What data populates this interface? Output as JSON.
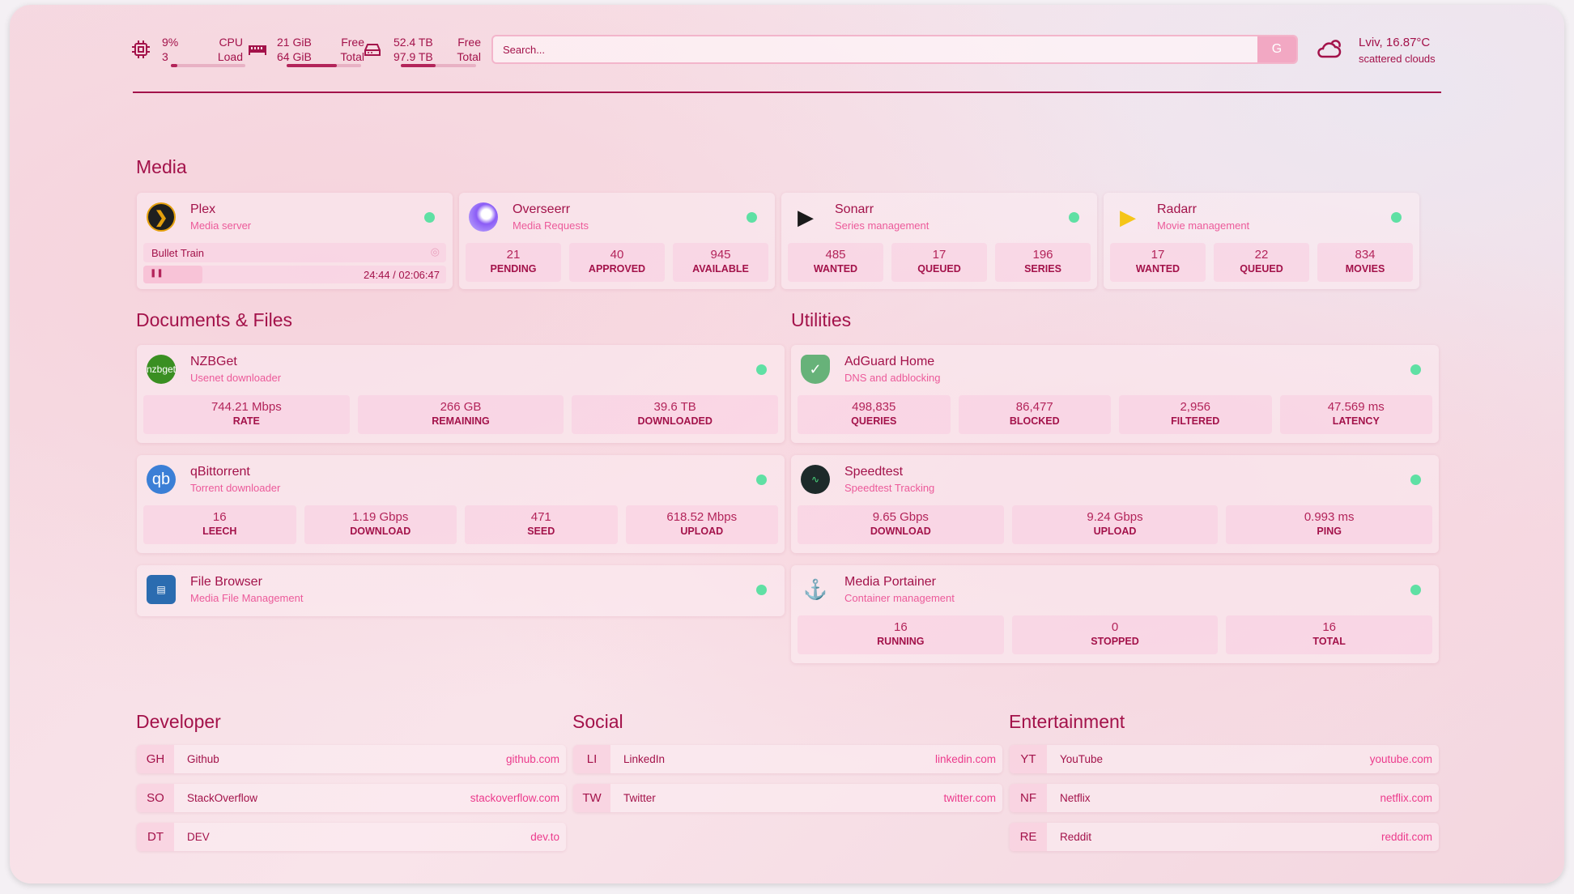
{
  "header": {
    "cpu": {
      "icon": "cpu-icon",
      "value": "9%",
      "sub": "3",
      "label1": "CPU",
      "label2": "Load",
      "fill_percent": 9
    },
    "memory": {
      "icon": "memory-icon",
      "value": "21 GiB",
      "sub": "64 GiB",
      "label1": "Free",
      "label2": "Total",
      "fill_percent": 67
    },
    "disk": {
      "icon": "disk-icon",
      "value": "52.4 TB",
      "sub": "97.9 TB",
      "label1": "Free",
      "label2": "Total",
      "fill_percent": 46
    },
    "search": {
      "placeholder": "Search...",
      "button": "G"
    },
    "weather": {
      "icon": "cloud-sun-icon",
      "location_temp": "Lviv, 16.87°C",
      "condition": "scattered clouds"
    }
  },
  "colors": {
    "accent": "#a3124a",
    "subtitle": "#ec5a9a",
    "status_ok": "#5fe0a4"
  },
  "sections": {
    "media": "Media",
    "documents": "Documents & Files",
    "utilities": "Utilities",
    "developer": "Developer",
    "social": "Social",
    "entertainment": "Entertainment"
  },
  "media": [
    {
      "name": "Plex",
      "desc": "Media server",
      "icon": "plex-icon",
      "now_playing": {
        "title": "Bullet Train",
        "time": "24:44 / 02:06:47",
        "progress_percent": 19.5,
        "state": "paused"
      }
    },
    {
      "name": "Overseerr",
      "desc": "Media Requests",
      "icon": "overseerr-icon",
      "stats": [
        {
          "v": "21",
          "l": "PENDING"
        },
        {
          "v": "40",
          "l": "APPROVED"
        },
        {
          "v": "945",
          "l": "AVAILABLE"
        }
      ]
    },
    {
      "name": "Sonarr",
      "desc": "Series management",
      "icon": "sonarr-icon",
      "stats": [
        {
          "v": "485",
          "l": "WANTED"
        },
        {
          "v": "17",
          "l": "QUEUED"
        },
        {
          "v": "196",
          "l": "SERIES"
        }
      ]
    },
    {
      "name": "Radarr",
      "desc": "Movie management",
      "icon": "radarr-icon",
      "stats": [
        {
          "v": "17",
          "l": "WANTED"
        },
        {
          "v": "22",
          "l": "QUEUED"
        },
        {
          "v": "834",
          "l": "MOVIES"
        }
      ]
    }
  ],
  "documents": [
    {
      "name": "NZBGet",
      "desc": "Usenet downloader",
      "icon": "nzbget-icon",
      "icon_text": "nzbget",
      "stats": [
        {
          "v": "744.21 Mbps",
          "l": "RATE"
        },
        {
          "v": "266 GB",
          "l": "REMAINING"
        },
        {
          "v": "39.6 TB",
          "l": "DOWNLOADED"
        }
      ]
    },
    {
      "name": "qBittorrent",
      "desc": "Torrent downloader",
      "icon": "qbittorrent-icon",
      "icon_text": "qb",
      "stats": [
        {
          "v": "16",
          "l": "LEECH"
        },
        {
          "v": "1.19 Gbps",
          "l": "DOWNLOAD"
        },
        {
          "v": "471",
          "l": "SEED"
        },
        {
          "v": "618.52 Mbps",
          "l": "UPLOAD"
        }
      ]
    },
    {
      "name": "File Browser",
      "desc": "Media File Management",
      "icon": "file-browser-icon",
      "stats": []
    }
  ],
  "utilities": [
    {
      "name": "AdGuard Home",
      "desc": "DNS and adblocking",
      "icon": "adguard-shield-icon",
      "stats": [
        {
          "v": "498,835",
          "l": "QUERIES"
        },
        {
          "v": "86,477",
          "l": "BLOCKED"
        },
        {
          "v": "2,956",
          "l": "FILTERED"
        },
        {
          "v": "47.569 ms",
          "l": "LATENCY"
        }
      ]
    },
    {
      "name": "Speedtest",
      "desc": "Speedtest Tracking",
      "icon": "speedtest-icon",
      "stats": [
        {
          "v": "9.65 Gbps",
          "l": "DOWNLOAD"
        },
        {
          "v": "9.24 Gbps",
          "l": "UPLOAD"
        },
        {
          "v": "0.993 ms",
          "l": "PING"
        }
      ]
    },
    {
      "name": "Media Portainer",
      "desc": "Container management",
      "icon": "portainer-icon",
      "stats": [
        {
          "v": "16",
          "l": "RUNNING"
        },
        {
          "v": "0",
          "l": "STOPPED"
        },
        {
          "v": "16",
          "l": "TOTAL"
        }
      ]
    }
  ],
  "bookmarks": {
    "developer": [
      {
        "abbr": "GH",
        "name": "Github",
        "url": "github.com"
      },
      {
        "abbr": "SO",
        "name": "StackOverflow",
        "url": "stackoverflow.com"
      },
      {
        "abbr": "DT",
        "name": "DEV",
        "url": "dev.to"
      }
    ],
    "social": [
      {
        "abbr": "LI",
        "name": "LinkedIn",
        "url": "linkedin.com"
      },
      {
        "abbr": "TW",
        "name": "Twitter",
        "url": "twitter.com"
      }
    ],
    "entertainment": [
      {
        "abbr": "YT",
        "name": "YouTube",
        "url": "youtube.com"
      },
      {
        "abbr": "NF",
        "name": "Netflix",
        "url": "netflix.com"
      },
      {
        "abbr": "RE",
        "name": "Reddit",
        "url": "reddit.com"
      }
    ]
  }
}
